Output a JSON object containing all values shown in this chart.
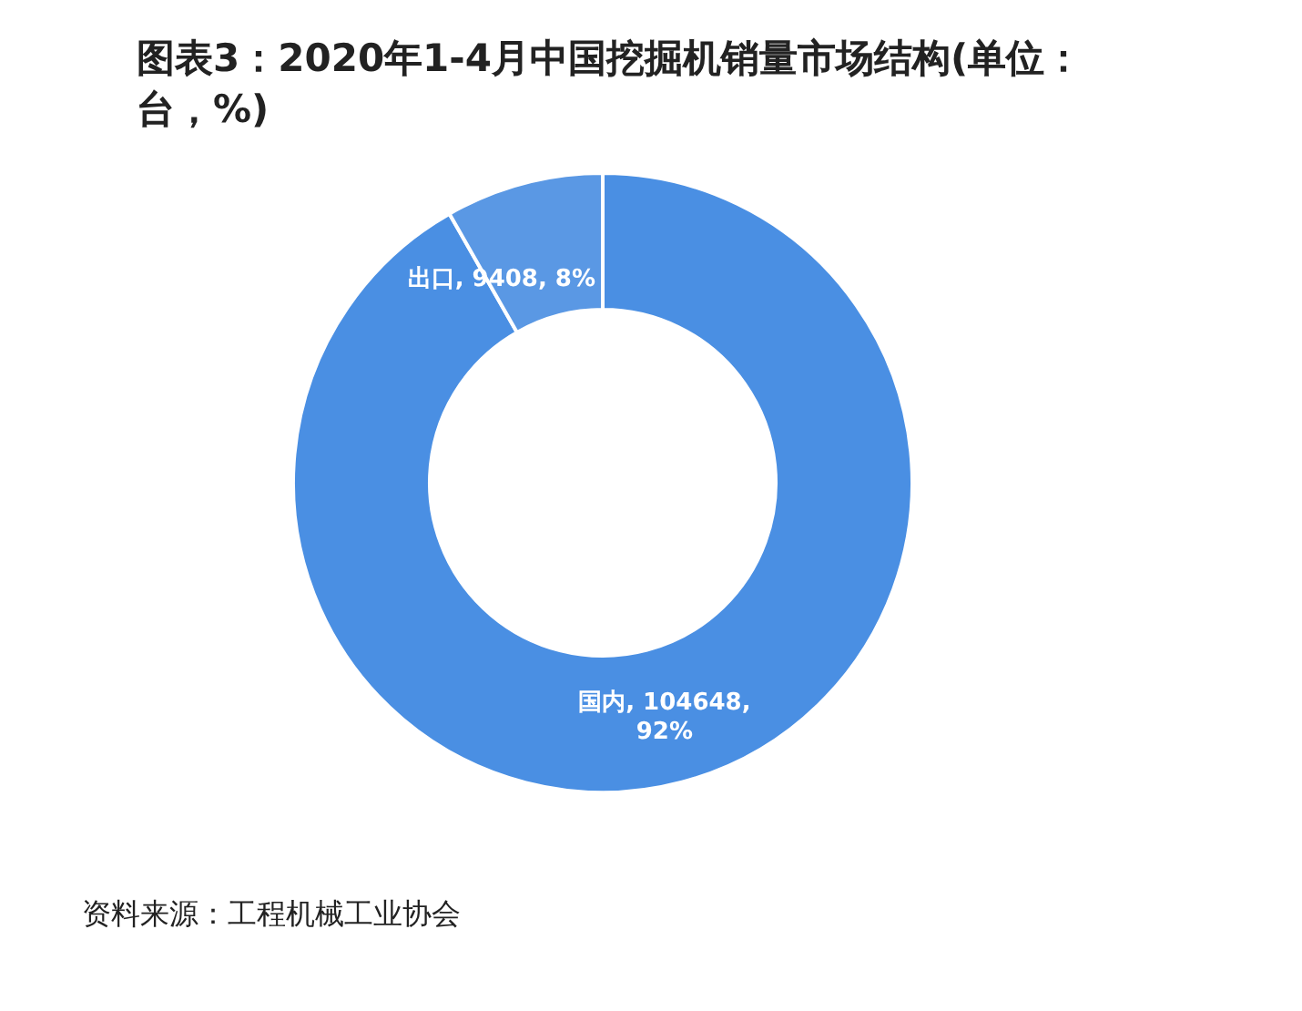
{
  "chart_data": {
    "type": "donut",
    "title": "图表3：2020年1-4月中国挖掘机销量市场结构(单位：台，%)",
    "categories": [
      "国内",
      "出口"
    ],
    "values": [
      104648,
      9408
    ],
    "value_labels": [
      "104648, 92%",
      "9408, 8%"
    ],
    "colors": [
      "#4a8fe3",
      "#5a98e4"
    ],
    "annotations": [
      "资料来源：工程机械工业协会"
    ]
  }
}
